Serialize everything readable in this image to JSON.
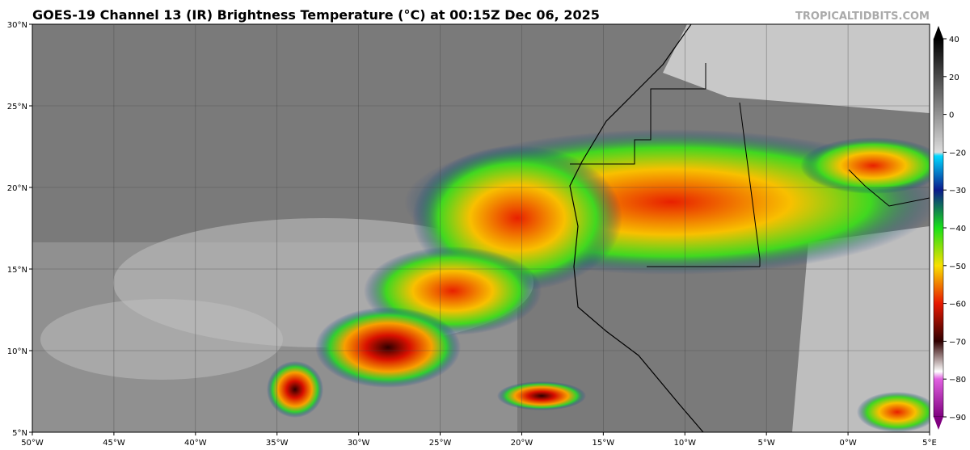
{
  "header": {
    "title": "GOES-19 Channel 13 (IR) Brightness Temperature (°C) at 00:15Z Dec 06, 2025",
    "watermark": "TROPICALTIDBITS.COM"
  },
  "map": {
    "lat_labels": [
      "30°N",
      "25°N",
      "20°N",
      "15°N",
      "10°N",
      "5°N"
    ],
    "lon_labels": [
      "50°W",
      "45°W",
      "40°W",
      "35°W",
      "30°W",
      "25°W",
      "20°W",
      "15°W",
      "10°W",
      "5°W",
      "0°W",
      "5°E"
    ]
  },
  "colorbar": {
    "ticks": [
      "40",
      "20",
      "0",
      "−20",
      "−30",
      "−40",
      "−50",
      "−60",
      "−70",
      "−80",
      "−90"
    ]
  }
}
